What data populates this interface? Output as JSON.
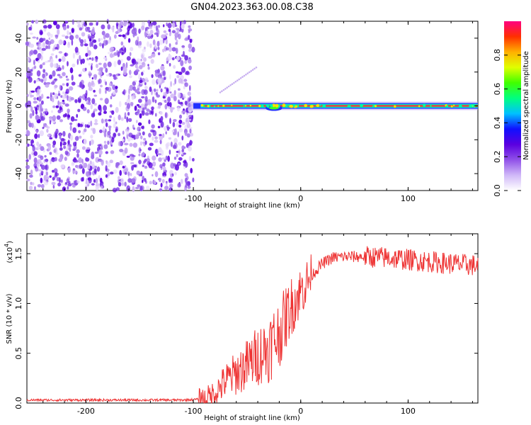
{
  "title": "GN04.2023.363.00.08.C38",
  "chart_data": [
    {
      "type": "heatmap",
      "xlabel": "Height of straight line (km)",
      "ylabel": "Frequency (Hz)",
      "xlim": [
        -255,
        165
      ],
      "ylim": [
        -50,
        50
      ],
      "xticks": [
        -200,
        -100,
        0,
        100
      ],
      "yticks": [
        -40,
        -20,
        0,
        20,
        40
      ],
      "colorbar": {
        "label": "Normalized spectral amplitude",
        "range": [
          0,
          1
        ],
        "ticks": [
          "0.0",
          "0.2",
          "0.4",
          "0.6",
          "0.8"
        ],
        "colormap": [
          "#ffffff",
          "#d0b8f8",
          "#9050e8",
          "#5a00e0",
          "#1010ff",
          "#00c0ff",
          "#00ff80",
          "#40ff00",
          "#e0ff00",
          "#ffb000",
          "#ff3000",
          "#ff0080"
        ]
      },
      "noise_region_x": [
        -255,
        -100
      ],
      "signal_line": {
        "frequency": 0,
        "x_range": [
          -100,
          165
        ],
        "peak_amplitude": 0.9
      }
    },
    {
      "type": "line",
      "xlabel": "Height of straight line (km)",
      "ylabel": "SNR (10 * v/v)",
      "y_multiplier": "(x10",
      "y_multiplier_exp": "4",
      "y_multiplier_close": ")",
      "xlim": [
        -255,
        165
      ],
      "ylim": [
        0,
        1.7
      ],
      "xticks": [
        -200,
        -100,
        0,
        100
      ],
      "yticks": [
        "0.0",
        "0.5",
        "1.0",
        "1.5"
      ],
      "color": "#ee3333",
      "series": [
        {
          "x": [
            -255,
            -200,
            -150,
            -110,
            -90,
            -80,
            -70,
            -60,
            -50,
            -40,
            -30,
            -20,
            -10,
            0,
            10,
            20,
            30,
            40,
            60,
            80,
            100,
            120,
            140,
            165
          ],
          "y": [
            0.03,
            0.03,
            0.03,
            0.03,
            0.04,
            0.1,
            0.22,
            0.3,
            0.38,
            0.48,
            0.55,
            0.7,
            0.95,
            1.12,
            1.28,
            1.4,
            1.46,
            1.47,
            1.47,
            1.46,
            1.44,
            1.42,
            1.4,
            1.38
          ]
        }
      ]
    }
  ]
}
